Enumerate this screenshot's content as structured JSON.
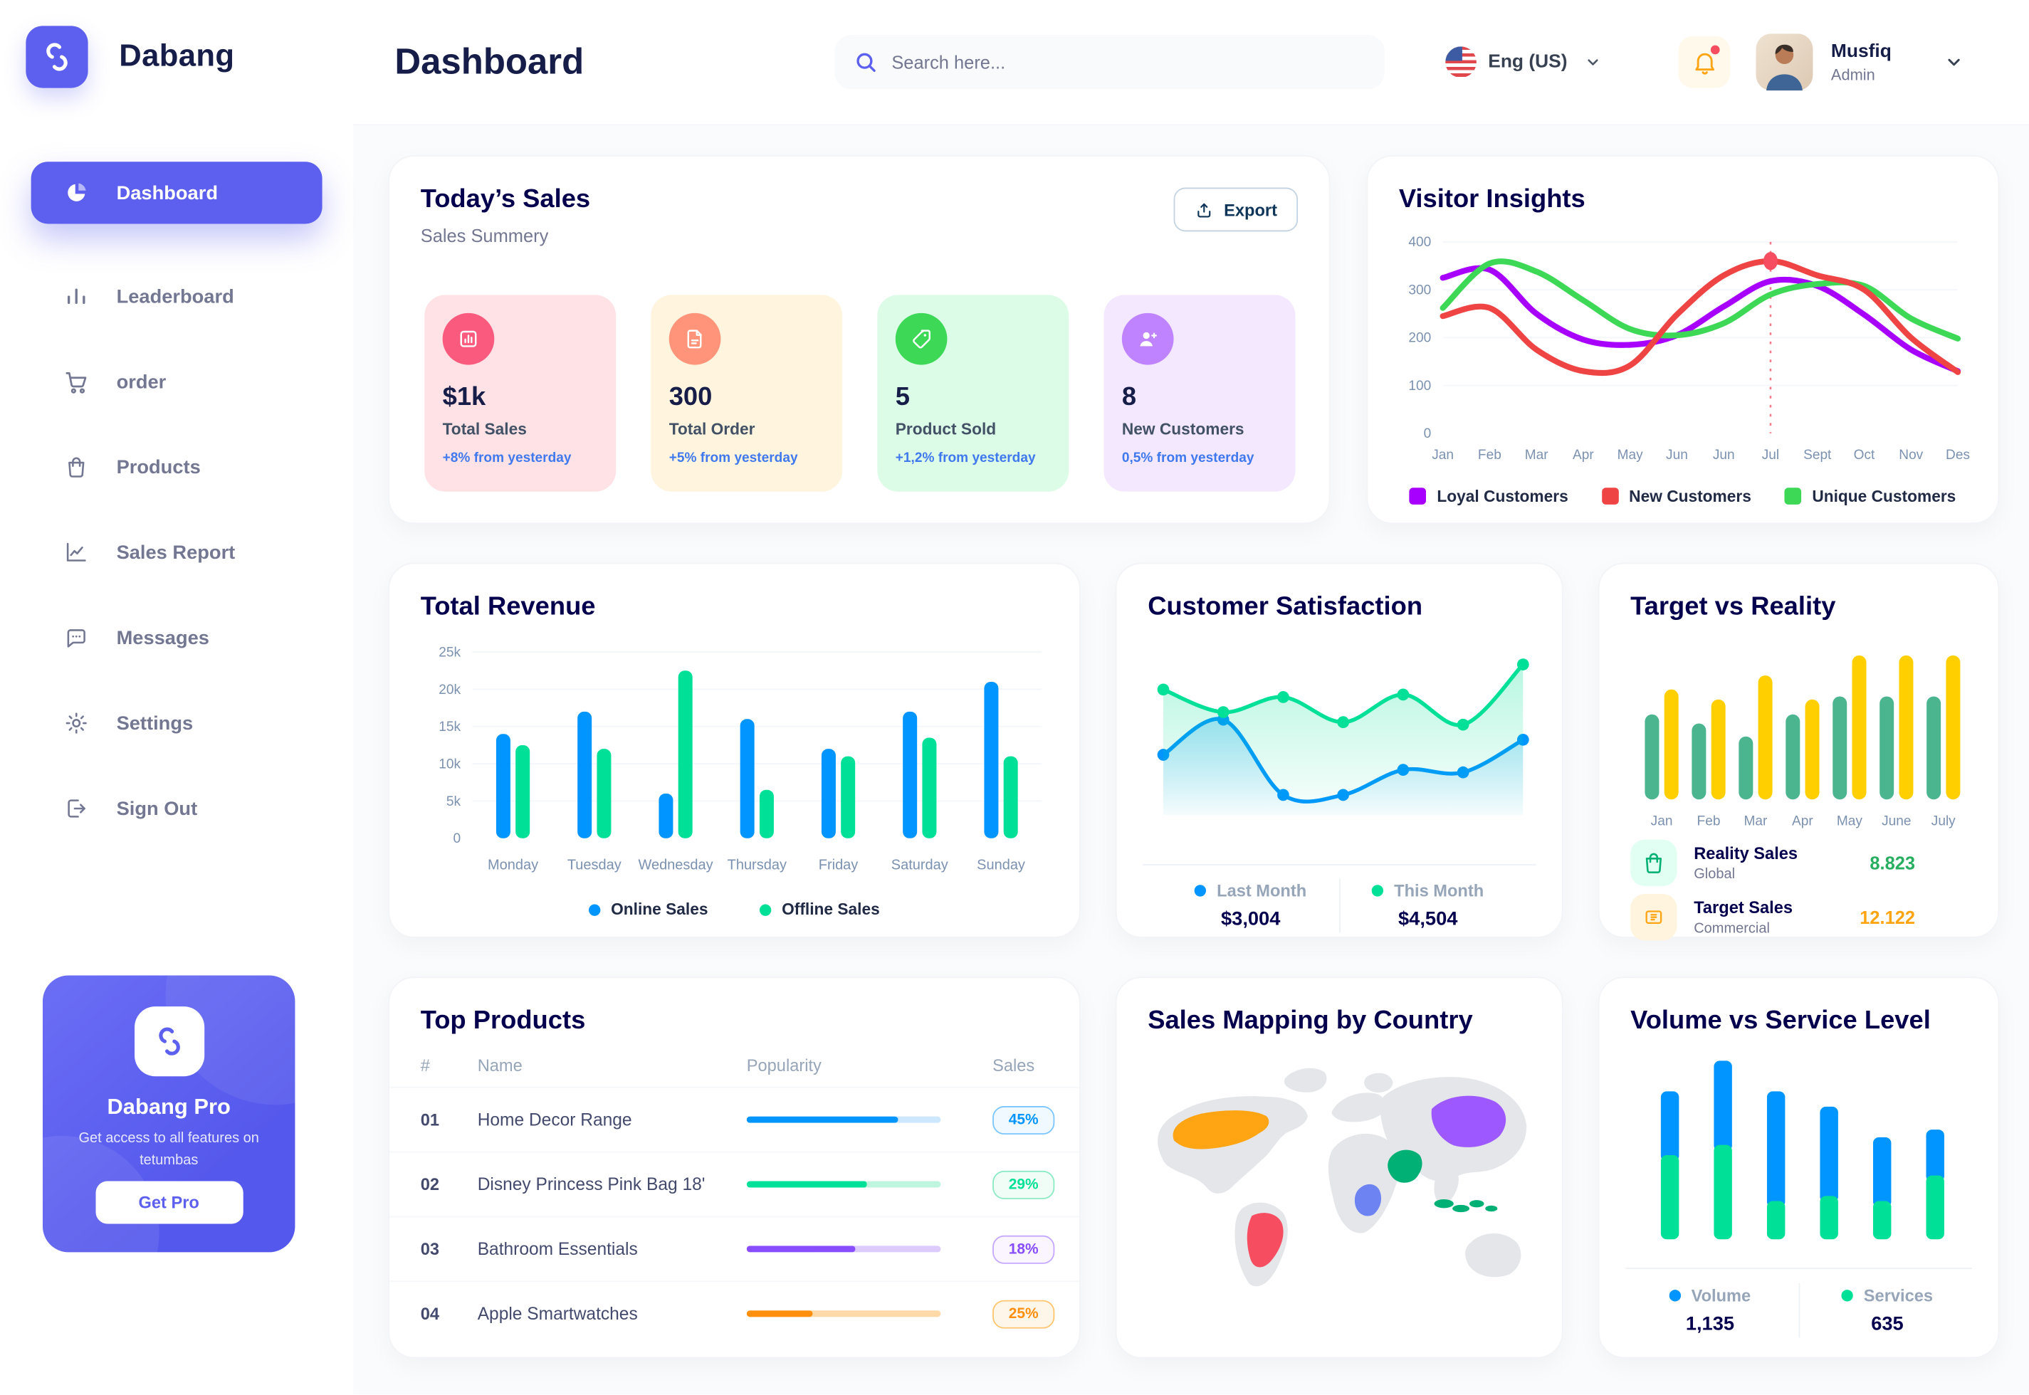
{
  "colors": {
    "brand": "#5D5FEF",
    "online_blue": "#0095FF",
    "offline_green": "#00E096",
    "alert_red": "#F64E60",
    "warn_orange": "#FFA412"
  },
  "header": {
    "title": "Dashboard",
    "search_placeholder": "Search here...",
    "language": "Eng (US)",
    "user_name": "Musfiq",
    "user_role": "Admin"
  },
  "sidebar": {
    "logo_text": "Dabang",
    "items": [
      {
        "id": "dashboard",
        "label": "Dashboard",
        "icon": "pie-chart-icon",
        "active": true
      },
      {
        "id": "leaderboard",
        "label": "Leaderboard",
        "icon": "bar-chart-icon",
        "active": false
      },
      {
        "id": "order",
        "label": "order",
        "icon": "cart-icon",
        "active": false
      },
      {
        "id": "products",
        "label": "Products",
        "icon": "bag-icon",
        "active": false
      },
      {
        "id": "sales-report",
        "label": "Sales Report",
        "icon": "line-chart-icon",
        "active": false
      },
      {
        "id": "messages",
        "label": "Messages",
        "icon": "message-icon",
        "active": false
      },
      {
        "id": "settings",
        "label": "Settings",
        "icon": "gear-icon",
        "active": false
      },
      {
        "id": "sign-out",
        "label": "Sign Out",
        "icon": "sign-out-icon",
        "active": false
      }
    ],
    "pro_card": {
      "title": "Dabang Pro",
      "subtitle": "Get access to all features on tetumbas",
      "button_label": "Get Pro"
    }
  },
  "todays_sales": {
    "title": "Today’s Sales",
    "subtitle": "Sales Summery",
    "export_label": "Export",
    "stats": [
      {
        "value": "$1k",
        "label": "Total Sales",
        "delta": "+8% from yesterday",
        "bg": "#FFE2E5",
        "icon_bg": "#FA5A7D",
        "icon": "sales-chart-icon"
      },
      {
        "value": "300",
        "label": "Total Order",
        "delta": "+5% from yesterday",
        "bg": "#FFF4DE",
        "icon_bg": "#FF947A",
        "icon": "order-file-icon"
      },
      {
        "value": "5",
        "label": "Product Sold",
        "delta": "+1,2% from yesterday",
        "bg": "#DCFCE7",
        "icon_bg": "#3CD856",
        "icon": "tag-icon"
      },
      {
        "value": "8",
        "label": "New Customers",
        "delta": "0,5% from yesterday",
        "bg": "#F3E8FF",
        "icon_bg": "#BF83FF",
        "icon": "new-user-icon"
      }
    ]
  },
  "top_products": {
    "title": "Top Products",
    "columns": [
      "#",
      "Name",
      "Popularity",
      "Sales"
    ],
    "rows": [
      {
        "rank": "01",
        "name": "Home Decor Range",
        "popularity_pct": 78,
        "sales": "45%",
        "color": "#0095FF",
        "track": "#CDE7FF",
        "badge_bg": "#F0F9FF",
        "badge_border": "#7CC6FF"
      },
      {
        "rank": "02",
        "name": "Disney Princess Pink Bag 18'",
        "popularity_pct": 62,
        "sales": "29%",
        "color": "#00E096",
        "track": "#BFF5DE",
        "badge_bg": "#F0FDF6",
        "badge_border": "#8CEBC4"
      },
      {
        "rank": "03",
        "name": "Bathroom Essentials",
        "popularity_pct": 56,
        "sales": "18%",
        "color": "#884DFF",
        "track": "#DCCBFF",
        "badge_bg": "#FAF5FF",
        "badge_border": "#C5A8FF"
      },
      {
        "rank": "04",
        "name": "Apple Smartwatches",
        "popularity_pct": 34,
        "sales": "25%",
        "color": "#FF8F0D",
        "track": "#FFD9A8",
        "badge_bg": "#FFF6EA",
        "badge_border": "#FFC56E"
      }
    ]
  },
  "sales_map": {
    "title": "Sales Mapping by Country",
    "countries": [
      {
        "id": "us",
        "name": "United States",
        "color": "#FFA412"
      },
      {
        "id": "brazil",
        "name": "Brazil",
        "color": "#F64E60"
      },
      {
        "id": "saudi",
        "name": "Saudi Arabia",
        "color": "#00B074"
      },
      {
        "id": "drc",
        "name": "DR Congo",
        "color": "#6D83F2"
      },
      {
        "id": "china",
        "name": "China",
        "color": "#9E58FF"
      },
      {
        "id": "indonesia",
        "name": "Indonesia",
        "color": "#00B074"
      }
    ]
  },
  "chart_data": [
    {
      "id": "visitor_insights",
      "type": "line",
      "title": "Visitor Insights",
      "x": [
        "Jan",
        "Feb",
        "Mar",
        "Apr",
        "May",
        "Jun",
        "Jun",
        "Jul",
        "Sept",
        "Oct",
        "Nov",
        "Des"
      ],
      "ylim": [
        0,
        400
      ],
      "yticks": [
        0,
        100,
        200,
        300,
        400
      ],
      "annotation_x_index": 7,
      "series": [
        {
          "name": "Loyal Customers",
          "color": "#A700FF",
          "values": [
            325,
            342,
            250,
            196,
            185,
            205,
            265,
            318,
            308,
            248,
            175,
            130
          ]
        },
        {
          "name": "New Customers",
          "color": "#EF4444",
          "values": [
            245,
            262,
            175,
            130,
            142,
            248,
            330,
            360,
            330,
            300,
            200,
            128
          ]
        },
        {
          "name": "Unique Customers",
          "color": "#3CD856",
          "values": [
            262,
            355,
            338,
            278,
            218,
            205,
            230,
            290,
            312,
            308,
            240,
            198
          ]
        }
      ]
    },
    {
      "id": "total_revenue",
      "type": "bar",
      "title": "Total Revenue",
      "categories": [
        "Monday",
        "Tuesday",
        "Wednesday",
        "Thursday",
        "Friday",
        "Saturday",
        "Sunday"
      ],
      "ylim": [
        0,
        25000
      ],
      "yticks": [
        0,
        5000,
        10000,
        15000,
        20000,
        25000
      ],
      "ytick_labels": [
        "0",
        "5k",
        "10k",
        "15k",
        "20k",
        "25k"
      ],
      "series": [
        {
          "name": "Online Sales",
          "color": "#0095FF",
          "values": [
            14000,
            17000,
            6000,
            16000,
            12000,
            17000,
            21000
          ]
        },
        {
          "name": "Offline Sales",
          "color": "#00E096",
          "values": [
            12500,
            12000,
            22500,
            6500,
            11000,
            13500,
            11000
          ]
        }
      ]
    },
    {
      "id": "customer_satisfaction",
      "type": "area",
      "title": "Customer Satisfaction",
      "x_points": 7,
      "ylim": [
        2000,
        5300
      ],
      "series": [
        {
          "name": "Last Month",
          "color": "#0095FF",
          "total": "$3,004",
          "values": [
            3200,
            3900,
            2400,
            2400,
            2900,
            2850,
            3500
          ]
        },
        {
          "name": "This Month",
          "color": "#00E096",
          "total": "$4,504",
          "values": [
            4500,
            4050,
            4350,
            3850,
            4400,
            3800,
            5000
          ]
        }
      ]
    },
    {
      "id": "target_vs_reality",
      "type": "bar",
      "title": "Target vs Reality",
      "categories": [
        "Jan",
        "Feb",
        "Mar",
        "Apr",
        "May",
        "June",
        "July"
      ],
      "ylim": [
        0,
        15
      ],
      "series": [
        {
          "name": "Reality Sales",
          "color": "#4AB58E",
          "values": [
            8.5,
            7.6,
            6.3,
            8.5,
            10.3,
            10.3,
            10.3
          ]
        },
        {
          "name": "Target Sales",
          "color": "#FFCF00",
          "values": [
            11,
            10,
            12.4,
            10,
            14.4,
            14.4,
            14.4
          ]
        }
      ],
      "legend": [
        {
          "label": "Reality Sales",
          "sublabel": "Global",
          "value": "8.823",
          "value_color": "#27AE60",
          "icon": "bag-icon",
          "icon_bg": "#E2FFF3",
          "icon_color": "#00B074"
        },
        {
          "label": "Target Sales",
          "sublabel": "Commercial",
          "value": "12.122",
          "value_color": "#FFA412",
          "icon": "ticket-icon",
          "icon_bg": "#FFF4DE",
          "icon_color": "#FFA412"
        }
      ]
    },
    {
      "id": "volume_vs_service",
      "type": "stacked-bar",
      "title": "Volume vs Service Level",
      "bars": 6,
      "series": [
        {
          "name": "Volume",
          "color": "#0095FF",
          "total": "1,135",
          "values": [
            25,
            33,
            43,
            35,
            25,
            18
          ]
        },
        {
          "name": "Services",
          "color": "#00E096",
          "total": "635",
          "values": [
            33,
            37,
            15,
            17,
            15,
            25
          ]
        }
      ]
    }
  ]
}
